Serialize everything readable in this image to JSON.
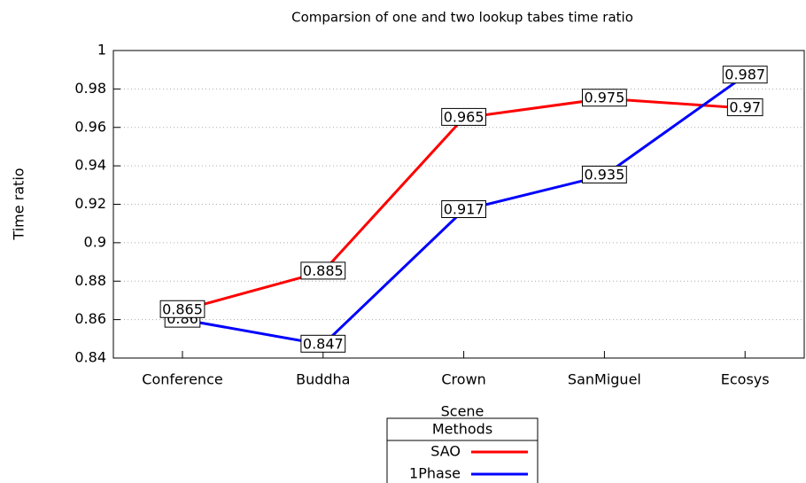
{
  "chart_data": {
    "type": "line",
    "title": "Comparsion of one and two lookup tabes time ratio",
    "x_label": "Scene",
    "y_label": "Time ratio",
    "categories": [
      "Conference",
      "Buddha",
      "Crown",
      "SanMiguel",
      "Ecosys"
    ],
    "series": [
      {
        "name": "SAO",
        "color": "#ff0000",
        "values": [
          0.865,
          0.885,
          0.965,
          0.975,
          0.97
        ]
      },
      {
        "name": "1Phase",
        "color": "#0000ff",
        "values": [
          0.86,
          0.847,
          0.917,
          0.935,
          0.987
        ]
      }
    ],
    "ylim": [
      0.84,
      1
    ],
    "yticks": [
      0.84,
      0.86,
      0.88,
      0.9,
      0.92,
      0.94,
      0.96,
      0.98,
      1
    ],
    "grid": true,
    "legend_title": "Methods",
    "legend_position": "bottom"
  }
}
